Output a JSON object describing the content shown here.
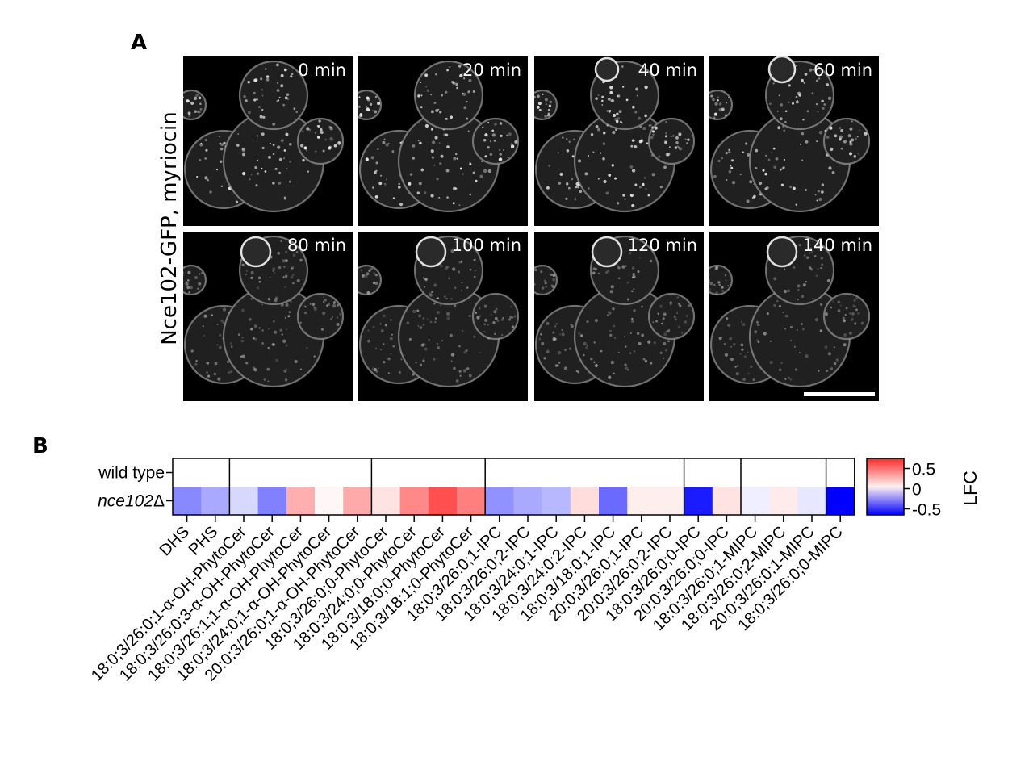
{
  "figure": {
    "panel_a_letter": "A",
    "panel_b_letter": "B",
    "panel_a_ylabel": "Nce102-GFP, myriocin",
    "timepoints": [
      "0 min",
      "20 min",
      "40 min",
      "60 min",
      "80 min",
      "100 min",
      "120 min",
      "140 min"
    ],
    "colors": {
      "tile_bg": "#000000",
      "high": "#ff2a2a",
      "mid": "#ffffff",
      "low": "#0000ff"
    }
  },
  "chart_data": {
    "type": "heatmap",
    "rows": [
      "wild type",
      "nce102Δ"
    ],
    "row_label_parts": [
      {
        "italic": "",
        "plain": "wild type"
      },
      {
        "italic": "nce102",
        "plain": "Δ"
      }
    ],
    "columns": [
      "DHS",
      "PHS",
      "18:0;3/26:0;1-α-OH-PhytoCer",
      "18:0;3/26:0;3-α-OH-PhytoCer",
      "18:0;3/26:1;1-α-OH-PhytoCer",
      "18:0;3/24:0;1-α-OH-PhytoCer",
      "20:0;3/26:0;1-α-OH-PhytoCer",
      "18:0;3/26:0;0-PhytoCer",
      "18:0;3/24:0;0-PhytoCer",
      "18:0;3/18:0;0-PhytoCer",
      "18:0;3/18:1;0-PhytoCer",
      "18:0;3/26:0;1-IPC",
      "18:0;3/26:0;2-IPC",
      "18:0;3/24:0;1-IPC",
      "18:0;3/24:0;2-IPC",
      "18:0;3/18:0;1-IPC",
      "20:0;3/26:0;1-IPC",
      "20:0;3/26:0;2-IPC",
      "18:0;3/26:0;0-IPC",
      "20:0;3/26:0;0-IPC",
      "18:0;3/26:0;1-MIPC",
      "18:0;3/26:0;2-MIPC",
      "20:0;3/26:0;1-MIPC",
      "18:0;3/26:0;0-MIPC"
    ],
    "values": [
      [
        0,
        0,
        0,
        0,
        0,
        0,
        0,
        0,
        0,
        0,
        0,
        0,
        0,
        0,
        0,
        0,
        0,
        0,
        0,
        0,
        0,
        0,
        0,
        0
      ],
      [
        -0.3,
        -0.22,
        -0.1,
        -0.32,
        0.28,
        0.03,
        0.3,
        0.1,
        0.42,
        0.62,
        0.45,
        -0.28,
        -0.22,
        -0.18,
        0.12,
        -0.38,
        0.06,
        0.06,
        -0.58,
        0.1,
        -0.04,
        0.07,
        -0.06,
        -0.7
      ]
    ],
    "group_boundaries_after": [
      1,
      6,
      10,
      17,
      19,
      22
    ],
    "colorbar": {
      "label": "LFC",
      "ticks": [
        0.5,
        0,
        -0.5
      ],
      "tick_labels": [
        "0.5",
        "0",
        "-0.5"
      ],
      "range": [
        -0.65,
        0.75
      ]
    }
  }
}
